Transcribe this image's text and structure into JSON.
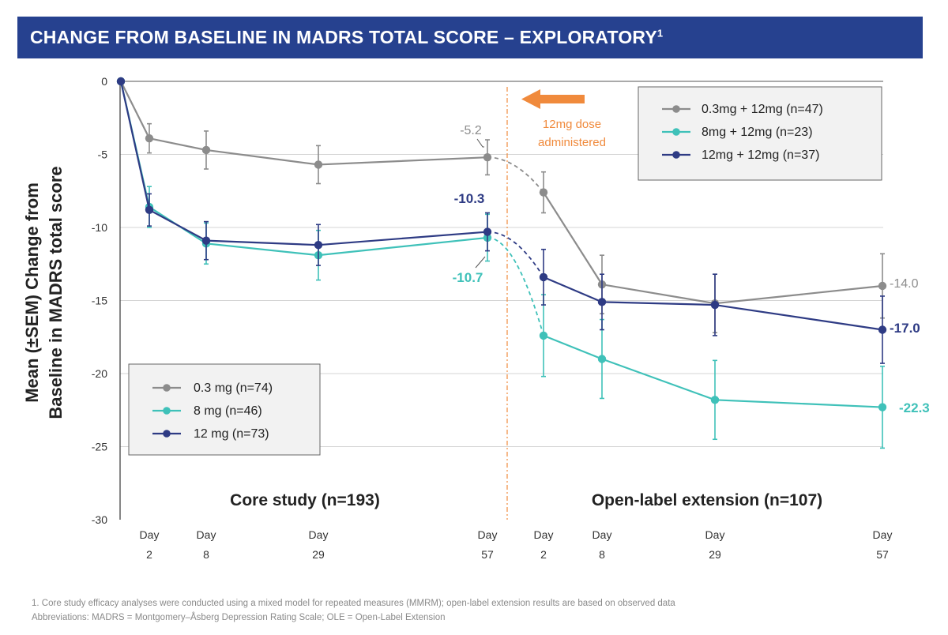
{
  "header": {
    "title": "CHANGE FROM BASELINE IN MADRS TOTAL SCORE – EXPLORATORY",
    "title_superscript": "1"
  },
  "chart_data": {
    "type": "line",
    "title": "CHANGE FROM BASELINE IN MADRS TOTAL SCORE – EXPLORATORY",
    "ylabel_line1": "Mean (±SEM) Change from",
    "ylabel_line2": "Baseline in MADRS total score",
    "ylim": [
      -30,
      0
    ],
    "yticks": [
      0,
      -5,
      -10,
      -15,
      -20,
      -25,
      -30
    ],
    "ytick_labels": [
      "0",
      "-5",
      "-10",
      "-15",
      "-20",
      "-25",
      "-30"
    ],
    "x_timepoints": [
      {
        "id": "bl",
        "label_top": "",
        "label_bottom": ""
      },
      {
        "id": "c2",
        "label_top": "Day",
        "label_bottom": "2"
      },
      {
        "id": "c8",
        "label_top": "Day",
        "label_bottom": "8"
      },
      {
        "id": "c29",
        "label_top": "Day",
        "label_bottom": "29"
      },
      {
        "id": "c57",
        "label_top": "Day",
        "label_bottom": "57"
      },
      {
        "id": "o2",
        "label_top": "Day",
        "label_bottom": "2"
      },
      {
        "id": "o8",
        "label_top": "Day",
        "label_bottom": "8"
      },
      {
        "id": "o29",
        "label_top": "Day",
        "label_bottom": "29"
      },
      {
        "id": "o57",
        "label_top": "Day",
        "label_bottom": "57"
      }
    ],
    "phase_labels": {
      "core": "Core study (n=193)",
      "ole": "Open-label extension (n=107)"
    },
    "dose_annotation": {
      "line1": "12mg dose",
      "line2": "administered",
      "color": "#f08a3c"
    },
    "legend_core": [
      {
        "name": "0.3 mg (n=74)",
        "color": "#8c8c8c"
      },
      {
        "name": "8 mg (n=46)",
        "color": "#3fc1b9"
      },
      {
        "name": "12 mg (n=73)",
        "color": "#2e3b84"
      }
    ],
    "legend_ole": [
      {
        "name": "0.3mg + 12mg (n=47)",
        "color": "#8c8c8c"
      },
      {
        "name": "8mg + 12mg (n=23)",
        "color": "#3fc1b9"
      },
      {
        "name": "12mg + 12mg (n=37)",
        "color": "#2e3b84"
      }
    ],
    "series": [
      {
        "name": "0.3 mg",
        "color": "#8c8c8c",
        "core_values": [
          0,
          -3.9,
          -4.7,
          -5.7,
          -5.2
        ],
        "core_err": [
          0,
          1.0,
          1.3,
          1.3,
          1.2
        ],
        "ole_values": [
          -7.6,
          -13.9,
          -15.2,
          -14.0
        ],
        "ole_err": [
          1.4,
          2.0,
          2.0,
          2.2
        ],
        "end_labels": {
          "core": "-5.2",
          "ole": "-14.0"
        }
      },
      {
        "name": "8 mg",
        "color": "#3fc1b9",
        "core_values": [
          0,
          -8.6,
          -11.1,
          -11.9,
          -10.7
        ],
        "core_err": [
          0,
          1.4,
          1.4,
          1.7,
          1.6
        ],
        "ole_values": [
          -17.4,
          -19.0,
          -21.8,
          -22.3
        ],
        "ole_err": [
          2.8,
          2.7,
          2.7,
          2.8
        ],
        "end_labels": {
          "core": "-10.7",
          "ole": "-22.3"
        }
      },
      {
        "name": "12 mg",
        "color": "#2e3b84",
        "core_values": [
          0,
          -8.8,
          -10.9,
          -11.2,
          -10.3
        ],
        "core_err": [
          0,
          1.1,
          1.3,
          1.4,
          1.3
        ],
        "ole_values": [
          -13.4,
          -15.1,
          -15.3,
          -17.0
        ],
        "ole_err": [
          1.9,
          1.9,
          2.1,
          2.3
        ],
        "end_labels": {
          "core": "-10.3",
          "ole": "-17.0"
        }
      }
    ]
  },
  "footnotes": {
    "line1": "1. Core study efficacy analyses were conducted using a mixed model for repeated measures (MMRM); open-label extension results are based on observed data",
    "line2": "Abbreviations: MADRS = Montgomery–Åsberg Depression Rating Scale; OLE = Open-Label Extension"
  }
}
